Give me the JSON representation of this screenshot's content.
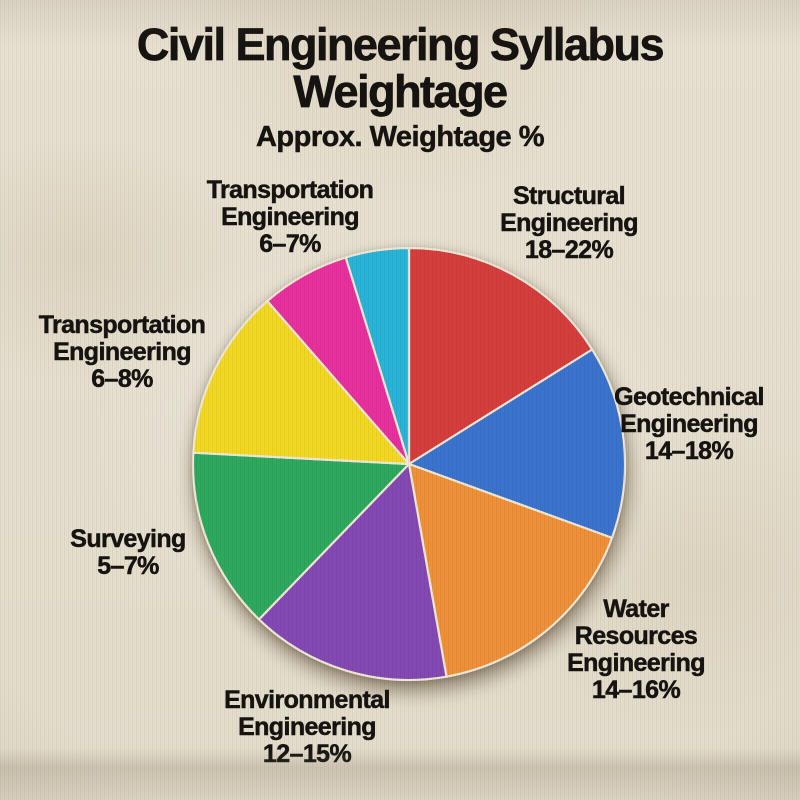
{
  "header": {
    "title_line1": "Civil Engineering Syllabus",
    "title_line2": "Weightage",
    "subtitle": "Approx. Weightage %"
  },
  "chart_data": {
    "type": "pie",
    "title": "Civil Engineering Syllabus Weightage",
    "subtitle": "Approx. Weightage %",
    "direction": "clockwise",
    "start_angle_deg": 0,
    "legend_position": "labels-around-pie",
    "background_color": "#E7E1D2",
    "segments": [
      {
        "name": "Structural Engineering",
        "range": "18–22%",
        "color": "#D63E3E",
        "angle_deg": 58,
        "label_lines": [
          "Structural",
          "Engineering",
          "18–22%"
        ]
      },
      {
        "name": "Geotechnical Engineering",
        "range": "14–18%",
        "color": "#3B74CF",
        "angle_deg": 52,
        "label_lines": [
          "Geotechnical",
          "Engineering",
          "14–18%"
        ]
      },
      {
        "name": "Water Resources Engineering",
        "range": "14–16%",
        "color": "#EF9138",
        "angle_deg": 60,
        "label_lines": [
          "Water",
          "Resources",
          "Engineering",
          "14–16%"
        ]
      },
      {
        "name": "Environmental Engineering",
        "range": "12–15%",
        "color": "#8449B4",
        "angle_deg": 54,
        "label_lines": [
          "Environmental",
          "Engineering",
          "12–15%"
        ]
      },
      {
        "name": "Surveying",
        "range": "5–7%",
        "color": "#2EA95F",
        "angle_deg": 49,
        "label_lines": [
          "Surveying",
          "5–7%"
        ]
      },
      {
        "name": "Transportation Engineering",
        "range": "6–8%",
        "color": "#F3D924",
        "angle_deg": 46,
        "label_lines": [
          "Transportation",
          "Engineering",
          "6–8%"
        ]
      },
      {
        "name": "Transportation Engineering",
        "range": "6–7%",
        "color": "#E8309E",
        "angle_deg": 24,
        "label_lines": [
          "Transportation",
          "Engineering",
          "6–7%"
        ]
      },
      {
        "name": "",
        "range": "",
        "color": "#29B4D8",
        "angle_deg": 17,
        "label_lines": []
      }
    ]
  }
}
